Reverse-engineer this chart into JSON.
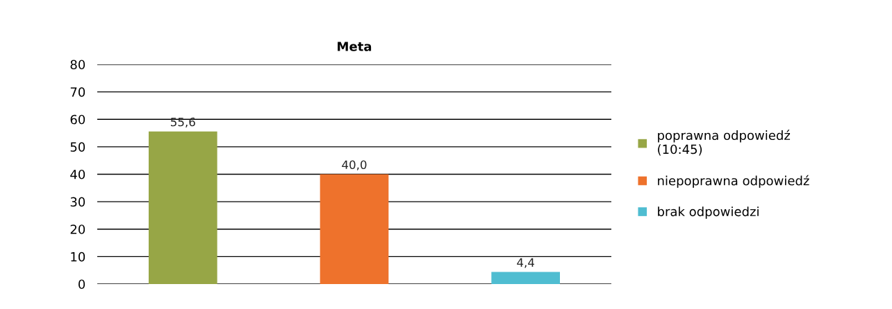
{
  "chart_data": {
    "type": "bar",
    "title": "Meta",
    "categories": [
      null,
      null,
      null
    ],
    "series": [
      {
        "name": "poprawna odpowiedź\n(10:45)",
        "color": "#97a646",
        "values": [
          55.6,
          null,
          null
        ],
        "value_labels": [
          "55,6",
          null,
          null
        ]
      },
      {
        "name": "niepoprawna odpowiedź",
        "color": "#ee722c",
        "values": [
          null,
          40.0,
          null
        ],
        "value_labels": [
          null,
          "40,0",
          null
        ]
      },
      {
        "name": "brak odpowiedzi",
        "color": "#4fbdd1",
        "values": [
          null,
          null,
          4.4
        ],
        "value_labels": [
          null,
          null,
          "4,4"
        ]
      }
    ],
    "ylim": [
      0,
      80
    ],
    "yticks": [
      0,
      10,
      20,
      30,
      40,
      50,
      60,
      70,
      80
    ],
    "grid": "y",
    "legend": "right"
  }
}
